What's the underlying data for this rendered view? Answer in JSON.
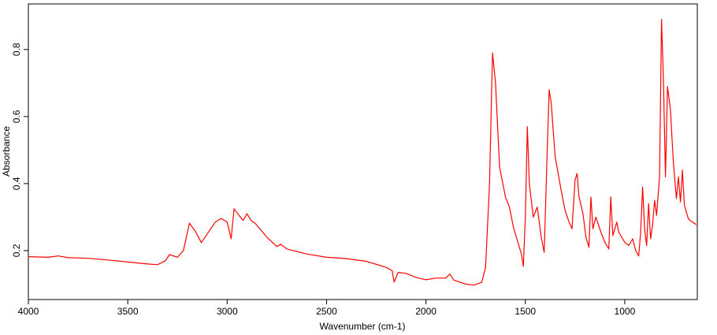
{
  "chart_data": {
    "type": "line",
    "xlabel": "Wavenumber (cm-1)",
    "ylabel": "Absorbance",
    "color": "#ff0000",
    "xlim": [
      4000,
      635
    ],
    "ylim": [
      0.054,
      0.936
    ],
    "xticks": [
      4000,
      3500,
      3000,
      2500,
      2000,
      1500,
      1000
    ],
    "yticks": [
      0.2,
      0.4,
      0.6,
      0.8
    ],
    "x": [
      4000,
      3900,
      3850,
      3800,
      3700,
      3600,
      3500,
      3400,
      3350,
      3310,
      3290,
      3250,
      3220,
      3190,
      3160,
      3130,
      3100,
      3060,
      3030,
      3000,
      2980,
      2965,
      2940,
      2920,
      2900,
      2880,
      2860,
      2800,
      2750,
      2730,
      2700,
      2600,
      2500,
      2400,
      2300,
      2200,
      2170,
      2160,
      2140,
      2100,
      2050,
      2000,
      1950,
      1900,
      1880,
      1860,
      1800,
      1760,
      1720,
      1700,
      1680,
      1665,
      1650,
      1630,
      1600,
      1580,
      1560,
      1520,
      1510,
      1500,
      1490,
      1480,
      1460,
      1440,
      1420,
      1405,
      1390,
      1380,
      1370,
      1350,
      1320,
      1300,
      1280,
      1265,
      1250,
      1240,
      1230,
      1210,
      1195,
      1180,
      1170,
      1160,
      1145,
      1120,
      1100,
      1080,
      1070,
      1060,
      1040,
      1030,
      1000,
      980,
      960,
      945,
      930,
      920,
      910,
      900,
      890,
      880,
      870,
      860,
      850,
      840,
      825,
      815,
      805,
      795,
      785,
      770,
      755,
      740,
      730,
      720,
      710,
      700,
      680,
      660,
      640
    ],
    "values": [
      0.182,
      0.18,
      0.184,
      0.179,
      0.177,
      0.172,
      0.166,
      0.16,
      0.158,
      0.17,
      0.188,
      0.18,
      0.2,
      0.282,
      0.258,
      0.224,
      0.25,
      0.285,
      0.296,
      0.285,
      0.235,
      0.325,
      0.305,
      0.29,
      0.31,
      0.29,
      0.282,
      0.24,
      0.212,
      0.219,
      0.205,
      0.19,
      0.18,
      0.176,
      0.168,
      0.15,
      0.14,
      0.106,
      0.135,
      0.132,
      0.12,
      0.113,
      0.118,
      0.118,
      0.13,
      0.112,
      0.1,
      0.097,
      0.105,
      0.15,
      0.4,
      0.79,
      0.7,
      0.45,
      0.36,
      0.33,
      0.27,
      0.19,
      0.153,
      0.3,
      0.57,
      0.4,
      0.3,
      0.33,
      0.24,
      0.195,
      0.5,
      0.68,
      0.64,
      0.48,
      0.38,
      0.32,
      0.285,
      0.265,
      0.41,
      0.43,
      0.36,
      0.31,
      0.24,
      0.21,
      0.36,
      0.265,
      0.3,
      0.255,
      0.225,
      0.205,
      0.36,
      0.245,
      0.285,
      0.255,
      0.225,
      0.215,
      0.235,
      0.2,
      0.184,
      0.255,
      0.39,
      0.265,
      0.215,
      0.34,
      0.235,
      0.275,
      0.35,
      0.305,
      0.42,
      0.89,
      0.7,
      0.42,
      0.69,
      0.62,
      0.46,
      0.355,
      0.42,
      0.345,
      0.44,
      0.335,
      0.295,
      0.285,
      0.278
    ]
  }
}
